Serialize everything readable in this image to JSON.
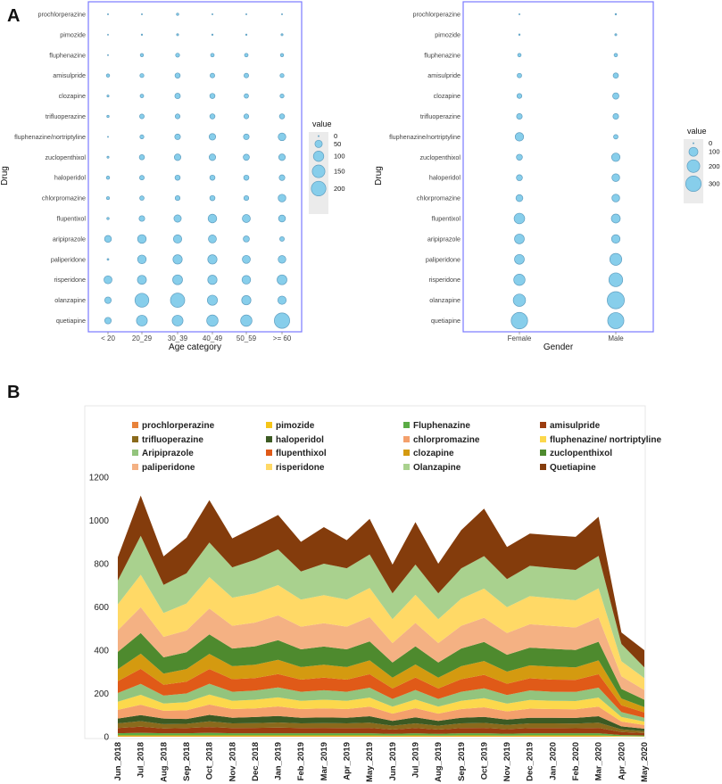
{
  "panels": {
    "a_label": "A",
    "b_label": "B"
  },
  "colors": {
    "bubble_fill": "#87ceeb",
    "bubble_stroke": "#5f9ec0",
    "panel_border": "#7a7aff",
    "legend_bg": "#ebebeb"
  },
  "chart_data": [
    {
      "type": "scatter",
      "subtype": "bubble",
      "panel": "A",
      "xlabel": "Age category",
      "ylabel": "Drug",
      "categories": [
        "< 20",
        "20_29",
        "30_39",
        "40_49",
        "50_59",
        ">= 60"
      ],
      "drugs": [
        "prochlorperazine",
        "pimozide",
        "fluphenazine",
        "amisulpride",
        "clozapine",
        "trifluoperazine",
        "fluphenazine/nortriptyline",
        "zuclopenthixol",
        "haloperidol",
        "chlorpromazine",
        "flupentixol",
        "aripiprazole",
        "paliperidone",
        "risperidone",
        "olanzapine",
        "quetiapine"
      ],
      "values": [
        [
          0,
          1,
          5,
          1,
          1,
          0
        ],
        [
          0,
          2,
          4,
          2,
          2,
          4
        ],
        [
          0,
          10,
          15,
          12,
          12,
          10
        ],
        [
          10,
          15,
          25,
          20,
          20,
          15
        ],
        [
          4,
          12,
          28,
          25,
          18,
          15
        ],
        [
          5,
          20,
          22,
          25,
          22,
          25
        ],
        [
          0,
          15,
          30,
          40,
          30,
          55
        ],
        [
          4,
          25,
          40,
          40,
          35,
          40
        ],
        [
          10,
          20,
          25,
          25,
          25,
          30
        ],
        [
          8,
          18,
          22,
          25,
          22,
          55
        ],
        [
          5,
          30,
          50,
          70,
          60,
          45
        ],
        [
          45,
          70,
          65,
          60,
          35,
          20
        ],
        [
          3,
          70,
          80,
          80,
          60,
          55
        ],
        [
          60,
          75,
          90,
          80,
          70,
          90
        ],
        [
          40,
          180,
          190,
          95,
          80,
          65
        ],
        [
          40,
          110,
          110,
          120,
          120,
          220
        ]
      ],
      "size_legend": {
        "title": "value",
        "breaks": [
          0,
          50,
          100,
          150,
          200
        ]
      }
    },
    {
      "type": "scatter",
      "subtype": "bubble",
      "panel": "A-right",
      "xlabel": "Gender",
      "ylabel": "Drug",
      "categories": [
        "Female",
        "Male"
      ],
      "drugs": [
        "prochlorperazine",
        "pimozide",
        "fluphenazine",
        "amisulpride",
        "clozapine",
        "trifluoperazine",
        "fluphenazine/nortriptyline",
        "zuclopenthixol",
        "haloperidol",
        "chlorpromazine",
        "flupentixol",
        "aripiprazole",
        "paliperidone",
        "risperidone",
        "olanzapine",
        "quetiapine"
      ],
      "values": [
        [
          1,
          3
        ],
        [
          3,
          5
        ],
        [
          15,
          15
        ],
        [
          25,
          35
        ],
        [
          30,
          50
        ],
        [
          40,
          40
        ],
        [
          90,
          25
        ],
        [
          45,
          90
        ],
        [
          45,
          75
        ],
        [
          60,
          75
        ],
        [
          140,
          100
        ],
        [
          120,
          90
        ],
        [
          120,
          180
        ],
        [
          160,
          240
        ],
        [
          190,
          370
        ],
        [
          340,
          330
        ]
      ],
      "size_legend": {
        "title": "value",
        "breaks": [
          0,
          100,
          200,
          300
        ]
      }
    },
    {
      "type": "area",
      "stacked": true,
      "panel": "B",
      "title": "",
      "xlabel": "",
      "ylabel": "",
      "ylim": [
        0,
        1200
      ],
      "yticks": [
        0,
        200,
        400,
        600,
        800,
        1000,
        1200
      ],
      "categories": [
        "Jun_2018",
        "Jul_2018",
        "Aug_2018",
        "Sep_2018",
        "Oct_2018",
        "Nov_2018",
        "Dec_2018",
        "Jan_2019",
        "Feb_2019",
        "Mar_2019",
        "Apr_2019",
        "May_2019",
        "Jun_2019",
        "Jul_2019",
        "Aug_2019",
        "Sep_2019",
        "Oct_2019",
        "Nov_2019",
        "Dec_2019",
        "Jan_2020",
        "Feb_2020",
        "Mar_2020",
        "Apr_2020",
        "May_2020"
      ],
      "series": [
        {
          "name": "prochlorperazine",
          "color": "#e8823a",
          "values": [
            2,
            2,
            2,
            2,
            2,
            2,
            2,
            2,
            2,
            2,
            2,
            2,
            2,
            2,
            2,
            2,
            2,
            2,
            2,
            2,
            2,
            2,
            1,
            1
          ]
        },
        {
          "name": "pimozide",
          "color": "#f5c518",
          "values": [
            4,
            4,
            4,
            4,
            4,
            4,
            4,
            4,
            4,
            4,
            4,
            4,
            3,
            4,
            3,
            4,
            4,
            3,
            4,
            4,
            4,
            4,
            2,
            1
          ]
        },
        {
          "name": "Fluphenazine",
          "color": "#5aac45",
          "values": [
            10,
            12,
            10,
            10,
            12,
            10,
            10,
            10,
            10,
            10,
            10,
            10,
            8,
            10,
            8,
            10,
            10,
            9,
            10,
            10,
            10,
            10,
            5,
            4
          ]
        },
        {
          "name": "amisulpride",
          "color": "#9c3d10",
          "values": [
            24,
            28,
            22,
            24,
            27,
            24,
            25,
            26,
            24,
            25,
            24,
            25,
            20,
            24,
            20,
            24,
            25,
            21,
            24,
            24,
            23,
            25,
            14,
            11
          ]
        },
        {
          "name": "trifluoperazine",
          "color": "#8a6a1c",
          "values": [
            22,
            26,
            20,
            20,
            26,
            22,
            22,
            24,
            22,
            22,
            22,
            24,
            18,
            22,
            18,
            22,
            23,
            20,
            22,
            22,
            22,
            24,
            12,
            9
          ]
        },
        {
          "name": "haloperidol",
          "color": "#3c5a23",
          "values": [
            22,
            28,
            26,
            22,
            30,
            26,
            28,
            30,
            26,
            26,
            26,
            30,
            22,
            28,
            22,
            26,
            28,
            24,
            26,
            26,
            26,
            30,
            14,
            11
          ]
        },
        {
          "name": "chlorpromazine",
          "color": "#f4a06c",
          "values": [
            40,
            48,
            36,
            40,
            48,
            40,
            40,
            44,
            40,
            42,
            40,
            44,
            34,
            42,
            34,
            40,
            44,
            38,
            42,
            40,
            40,
            44,
            22,
            17
          ]
        },
        {
          "name": "fluphenazine/ nortriptyline",
          "color": "#fcd84c",
          "values": [
            38,
            46,
            34,
            38,
            46,
            38,
            40,
            42,
            38,
            40,
            38,
            42,
            32,
            40,
            32,
            38,
            42,
            36,
            40,
            38,
            38,
            42,
            21,
            16
          ]
        },
        {
          "name": "Aripiprazole",
          "color": "#93c47d",
          "values": [
            40,
            50,
            36,
            40,
            50,
            42,
            42,
            46,
            42,
            44,
            42,
            46,
            36,
            44,
            36,
            42,
            46,
            40,
            44,
            42,
            42,
            46,
            23,
            18
          ]
        },
        {
          "name": "flupenthixol",
          "color": "#e05a18",
          "values": [
            55,
            70,
            50,
            55,
            68,
            58,
            58,
            62,
            56,
            58,
            56,
            62,
            48,
            58,
            48,
            58,
            62,
            52,
            56,
            56,
            56,
            62,
            31,
            24
          ]
        },
        {
          "name": "clozapine",
          "color": "#d49a10",
          "values": [
            55,
            70,
            52,
            58,
            70,
            60,
            62,
            66,
            58,
            60,
            58,
            64,
            50,
            60,
            50,
            60,
            64,
            56,
            60,
            60,
            58,
            64,
            32,
            25
          ]
        },
        {
          "name": "zuclopenthixol",
          "color": "#4e8a2e",
          "values": [
            80,
            95,
            75,
            78,
            90,
            82,
            85,
            90,
            82,
            84,
            82,
            88,
            70,
            84,
            70,
            82,
            88,
            78,
            82,
            82,
            80,
            86,
            44,
            34
          ]
        },
        {
          "name": "paliperidone",
          "color": "#f4b183",
          "values": [
            100,
            120,
            95,
            100,
            120,
            105,
            110,
            115,
            105,
            108,
            105,
            112,
            90,
            108,
            90,
            105,
            112,
            100,
            108,
            106,
            104,
            112,
            58,
            45
          ]
        },
        {
          "name": "risperidone",
          "color": "#ffd966",
          "values": [
            120,
            150,
            110,
            125,
            145,
            130,
            135,
            140,
            125,
            130,
            125,
            135,
            110,
            130,
            110,
            125,
            135,
            120,
            130,
            128,
            126,
            135,
            70,
            55
          ]
        },
        {
          "name": "Olanzapine",
          "color": "#a9d18e",
          "values": [
            110,
            180,
            130,
            140,
            160,
            140,
            155,
            165,
            130,
            145,
            145,
            155,
            120,
            140,
            120,
            140,
            150,
            130,
            140,
            140,
            140,
            150,
            80,
            50
          ]
        },
        {
          "name": "Quetiapine",
          "color": "#843c0c",
          "values": [
            108,
            186,
            132,
            164,
            196,
            134,
            152,
            159,
            137,
            169,
            130,
            164,
            133,
            196,
            137,
            177,
            220,
            148,
            149,
            151,
            153,
            181,
            53,
            79
          ]
        }
      ]
    }
  ]
}
